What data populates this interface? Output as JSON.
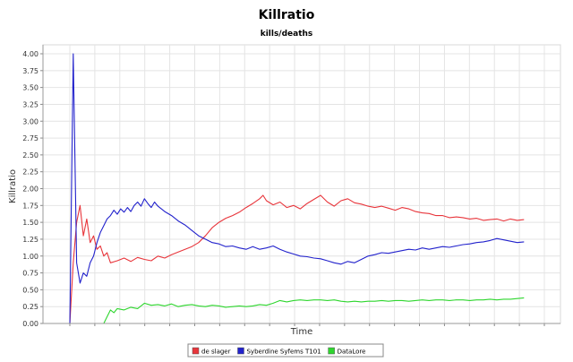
{
  "chart_data": {
    "type": "line",
    "title": "Killratio",
    "subtitle": "kills/deaths",
    "xlabel": "Time",
    "ylabel": "Killratio",
    "ylim": [
      0,
      4.0
    ],
    "yticks": [
      "0.00",
      "0.25",
      "0.50",
      "0.75",
      "1.00",
      "1.25",
      "1.50",
      "1.75",
      "2.00",
      "2.25",
      "2.50",
      "2.75",
      "3.00",
      "3.25",
      "3.50",
      "3.75",
      "4.00"
    ],
    "xlim": [
      0,
      140
    ],
    "grid": true,
    "legend_position": "bottom",
    "series": [
      {
        "name": "de slager",
        "color": "#e8353b",
        "points": [
          [
            0,
            0
          ],
          [
            1,
            0.9
          ],
          [
            2,
            1.5
          ],
          [
            3,
            1.75
          ],
          [
            4,
            1.3
          ],
          [
            5,
            1.55
          ],
          [
            6,
            1.2
          ],
          [
            7,
            1.3
          ],
          [
            8,
            1.1
          ],
          [
            9,
            1.15
          ],
          [
            10,
            1.0
          ],
          [
            11,
            1.05
          ],
          [
            12,
            0.9
          ],
          [
            14,
            0.93
          ],
          [
            16,
            0.97
          ],
          [
            18,
            0.92
          ],
          [
            20,
            0.98
          ],
          [
            22,
            0.95
          ],
          [
            24,
            0.93
          ],
          [
            26,
            1.0
          ],
          [
            28,
            0.97
          ],
          [
            30,
            1.02
          ],
          [
            32,
            1.06
          ],
          [
            34,
            1.1
          ],
          [
            36,
            1.14
          ],
          [
            38,
            1.2
          ],
          [
            40,
            1.3
          ],
          [
            42,
            1.42
          ],
          [
            44,
            1.5
          ],
          [
            46,
            1.56
          ],
          [
            48,
            1.6
          ],
          [
            50,
            1.65
          ],
          [
            52,
            1.72
          ],
          [
            54,
            1.78
          ],
          [
            56,
            1.85
          ],
          [
            57,
            1.9
          ],
          [
            58,
            1.82
          ],
          [
            60,
            1.76
          ],
          [
            62,
            1.8
          ],
          [
            64,
            1.72
          ],
          [
            66,
            1.75
          ],
          [
            68,
            1.7
          ],
          [
            70,
            1.78
          ],
          [
            72,
            1.84
          ],
          [
            74,
            1.9
          ],
          [
            76,
            1.8
          ],
          [
            78,
            1.74
          ],
          [
            80,
            1.82
          ],
          [
            82,
            1.85
          ],
          [
            84,
            1.79
          ],
          [
            86,
            1.77
          ],
          [
            88,
            1.74
          ],
          [
            90,
            1.72
          ],
          [
            92,
            1.74
          ],
          [
            94,
            1.71
          ],
          [
            96,
            1.68
          ],
          [
            98,
            1.72
          ],
          [
            100,
            1.7
          ],
          [
            102,
            1.66
          ],
          [
            104,
            1.64
          ],
          [
            106,
            1.63
          ],
          [
            108,
            1.6
          ],
          [
            110,
            1.6
          ],
          [
            112,
            1.57
          ],
          [
            114,
            1.58
          ],
          [
            116,
            1.57
          ],
          [
            118,
            1.55
          ],
          [
            120,
            1.56
          ],
          [
            122,
            1.53
          ],
          [
            124,
            1.54
          ],
          [
            126,
            1.55
          ],
          [
            128,
            1.52
          ],
          [
            130,
            1.55
          ],
          [
            132,
            1.53
          ],
          [
            134,
            1.54
          ]
        ]
      },
      {
        "name": "Syberdine Syfems T101",
        "color": "#2222cc",
        "points": [
          [
            0,
            0
          ],
          [
            1,
            4.0
          ],
          [
            2,
            0.9
          ],
          [
            3,
            0.6
          ],
          [
            4,
            0.75
          ],
          [
            5,
            0.7
          ],
          [
            6,
            0.9
          ],
          [
            7,
            1.0
          ],
          [
            8,
            1.2
          ],
          [
            9,
            1.35
          ],
          [
            10,
            1.45
          ],
          [
            11,
            1.55
          ],
          [
            12,
            1.6
          ],
          [
            13,
            1.68
          ],
          [
            14,
            1.62
          ],
          [
            15,
            1.7
          ],
          [
            16,
            1.65
          ],
          [
            17,
            1.72
          ],
          [
            18,
            1.66
          ],
          [
            19,
            1.75
          ],
          [
            20,
            1.8
          ],
          [
            21,
            1.74
          ],
          [
            22,
            1.85
          ],
          [
            23,
            1.78
          ],
          [
            24,
            1.72
          ],
          [
            25,
            1.8
          ],
          [
            26,
            1.74
          ],
          [
            27,
            1.7
          ],
          [
            28,
            1.66
          ],
          [
            30,
            1.6
          ],
          [
            32,
            1.52
          ],
          [
            34,
            1.46
          ],
          [
            36,
            1.38
          ],
          [
            38,
            1.3
          ],
          [
            40,
            1.25
          ],
          [
            42,
            1.2
          ],
          [
            44,
            1.18
          ],
          [
            46,
            1.14
          ],
          [
            48,
            1.15
          ],
          [
            50,
            1.12
          ],
          [
            52,
            1.1
          ],
          [
            54,
            1.14
          ],
          [
            56,
            1.1
          ],
          [
            58,
            1.12
          ],
          [
            60,
            1.15
          ],
          [
            62,
            1.1
          ],
          [
            64,
            1.06
          ],
          [
            66,
            1.03
          ],
          [
            68,
            1.0
          ],
          [
            70,
            0.99
          ],
          [
            72,
            0.97
          ],
          [
            74,
            0.96
          ],
          [
            76,
            0.93
          ],
          [
            78,
            0.9
          ],
          [
            80,
            0.88
          ],
          [
            82,
            0.92
          ],
          [
            84,
            0.9
          ],
          [
            86,
            0.95
          ],
          [
            88,
            1.0
          ],
          [
            90,
            1.02
          ],
          [
            92,
            1.05
          ],
          [
            94,
            1.04
          ],
          [
            96,
            1.06
          ],
          [
            98,
            1.08
          ],
          [
            100,
            1.1
          ],
          [
            102,
            1.09
          ],
          [
            104,
            1.12
          ],
          [
            106,
            1.1
          ],
          [
            108,
            1.12
          ],
          [
            110,
            1.14
          ],
          [
            112,
            1.13
          ],
          [
            114,
            1.15
          ],
          [
            116,
            1.17
          ],
          [
            118,
            1.18
          ],
          [
            120,
            1.2
          ],
          [
            122,
            1.21
          ],
          [
            124,
            1.23
          ],
          [
            126,
            1.26
          ],
          [
            128,
            1.24
          ],
          [
            130,
            1.22
          ],
          [
            132,
            1.2
          ],
          [
            134,
            1.21
          ]
        ]
      },
      {
        "name": "DataLore",
        "color": "#2ed62e",
        "points": [
          [
            10,
            0
          ],
          [
            11,
            0.1
          ],
          [
            12,
            0.2
          ],
          [
            13,
            0.16
          ],
          [
            14,
            0.22
          ],
          [
            16,
            0.2
          ],
          [
            18,
            0.24
          ],
          [
            20,
            0.22
          ],
          [
            22,
            0.3
          ],
          [
            24,
            0.27
          ],
          [
            26,
            0.28
          ],
          [
            28,
            0.26
          ],
          [
            30,
            0.29
          ],
          [
            32,
            0.25
          ],
          [
            34,
            0.27
          ],
          [
            36,
            0.28
          ],
          [
            38,
            0.26
          ],
          [
            40,
            0.25
          ],
          [
            42,
            0.27
          ],
          [
            44,
            0.26
          ],
          [
            46,
            0.24
          ],
          [
            48,
            0.25
          ],
          [
            50,
            0.26
          ],
          [
            52,
            0.25
          ],
          [
            54,
            0.26
          ],
          [
            56,
            0.28
          ],
          [
            58,
            0.27
          ],
          [
            60,
            0.3
          ],
          [
            62,
            0.34
          ],
          [
            64,
            0.32
          ],
          [
            66,
            0.34
          ],
          [
            68,
            0.35
          ],
          [
            70,
            0.34
          ],
          [
            72,
            0.35
          ],
          [
            74,
            0.35
          ],
          [
            76,
            0.34
          ],
          [
            78,
            0.35
          ],
          [
            80,
            0.33
          ],
          [
            82,
            0.32
          ],
          [
            84,
            0.33
          ],
          [
            86,
            0.32
          ],
          [
            88,
            0.33
          ],
          [
            90,
            0.33
          ],
          [
            92,
            0.34
          ],
          [
            94,
            0.33
          ],
          [
            96,
            0.34
          ],
          [
            98,
            0.34
          ],
          [
            100,
            0.33
          ],
          [
            102,
            0.34
          ],
          [
            104,
            0.35
          ],
          [
            106,
            0.34
          ],
          [
            108,
            0.35
          ],
          [
            110,
            0.35
          ],
          [
            112,
            0.34
          ],
          [
            114,
            0.35
          ],
          [
            116,
            0.35
          ],
          [
            118,
            0.34
          ],
          [
            120,
            0.35
          ],
          [
            122,
            0.35
          ],
          [
            124,
            0.36
          ],
          [
            126,
            0.35
          ],
          [
            128,
            0.36
          ],
          [
            130,
            0.36
          ],
          [
            132,
            0.37
          ],
          [
            134,
            0.38
          ]
        ]
      }
    ]
  }
}
